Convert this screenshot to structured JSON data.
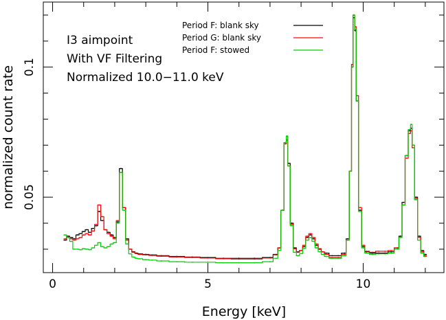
{
  "chart_data": {
    "type": "line",
    "xlabel": "Energy [keV]",
    "ylabel": "normalized count rate",
    "xlim": [
      -0.3,
      12.6
    ],
    "ylim": [
      0.021,
      0.125
    ],
    "x_ticks": [
      0,
      5,
      10
    ],
    "x_tick_labels": [
      "0",
      "5",
      "10"
    ],
    "y_ticks": [
      0.05,
      0.1
    ],
    "y_tick_labels": [
      "0.05",
      "0.1"
    ],
    "annotations": [
      "I3 aimpoint",
      "With VF Filtering",
      "Normalized 10.0−11.0 keV"
    ],
    "legend_position": "top-right",
    "grid": false,
    "series": [
      {
        "name": "Period F: blank sky",
        "color": "#000000",
        "points": [
          [
            0.4,
            0.0335
          ],
          [
            0.5,
            0.035
          ],
          [
            0.6,
            0.0345
          ],
          [
            0.7,
            0.034
          ],
          [
            0.8,
            0.0355
          ],
          [
            0.9,
            0.036
          ],
          [
            1.0,
            0.0368
          ],
          [
            1.1,
            0.0375
          ],
          [
            1.2,
            0.0365
          ],
          [
            1.3,
            0.038
          ],
          [
            1.4,
            0.039
          ],
          [
            1.5,
            0.0445
          ],
          [
            1.6,
            0.041
          ],
          [
            1.7,
            0.0375
          ],
          [
            1.8,
            0.0365
          ],
          [
            1.9,
            0.0355
          ],
          [
            2.0,
            0.0345
          ],
          [
            2.1,
            0.0405
          ],
          [
            2.2,
            0.061
          ],
          [
            2.3,
            0.046
          ],
          [
            2.4,
            0.034
          ],
          [
            2.5,
            0.03
          ],
          [
            2.6,
            0.029
          ],
          [
            2.7,
            0.0285
          ],
          [
            2.8,
            0.0282
          ],
          [
            3.0,
            0.028
          ],
          [
            3.2,
            0.0278
          ],
          [
            3.5,
            0.0275
          ],
          [
            4.0,
            0.0272
          ],
          [
            4.5,
            0.027
          ],
          [
            5.0,
            0.0268
          ],
          [
            5.5,
            0.0265
          ],
          [
            6.0,
            0.0265
          ],
          [
            6.5,
            0.0265
          ],
          [
            7.0,
            0.0268
          ],
          [
            7.2,
            0.028
          ],
          [
            7.3,
            0.0305
          ],
          [
            7.4,
            0.045
          ],
          [
            7.5,
            0.071
          ],
          [
            7.55,
            0.0735
          ],
          [
            7.6,
            0.063
          ],
          [
            7.7,
            0.04
          ],
          [
            7.8,
            0.0305
          ],
          [
            7.9,
            0.029
          ],
          [
            8.0,
            0.0295
          ],
          [
            8.1,
            0.031
          ],
          [
            8.2,
            0.0345
          ],
          [
            8.3,
            0.0355
          ],
          [
            8.4,
            0.034
          ],
          [
            8.5,
            0.0315
          ],
          [
            8.6,
            0.03
          ],
          [
            8.7,
            0.029
          ],
          [
            8.8,
            0.0285
          ],
          [
            9.0,
            0.0275
          ],
          [
            9.2,
            0.0275
          ],
          [
            9.4,
            0.0285
          ],
          [
            9.5,
            0.034
          ],
          [
            9.6,
            0.06
          ],
          [
            9.65,
            0.1
          ],
          [
            9.7,
            0.119
          ],
          [
            9.75,
            0.114
          ],
          [
            9.8,
            0.087
          ],
          [
            9.9,
            0.045
          ],
          [
            10.0,
            0.031
          ],
          [
            10.1,
            0.029
          ],
          [
            10.3,
            0.0285
          ],
          [
            10.5,
            0.0285
          ],
          [
            10.7,
            0.0285
          ],
          [
            10.9,
            0.029
          ],
          [
            11.1,
            0.0305
          ],
          [
            11.2,
            0.035
          ],
          [
            11.3,
            0.048
          ],
          [
            11.4,
            0.066
          ],
          [
            11.5,
            0.0755
          ],
          [
            11.55,
            0.0765
          ],
          [
            11.6,
            0.07
          ],
          [
            11.7,
            0.05
          ],
          [
            11.8,
            0.035
          ],
          [
            11.9,
            0.0295
          ],
          [
            12.0,
            0.028
          ]
        ]
      },
      {
        "name": "Period G: blank sky",
        "color": "#ff0000",
        "points": [
          [
            0.4,
            0.034
          ],
          [
            0.5,
            0.0345
          ],
          [
            0.6,
            0.034
          ],
          [
            0.7,
            0.0335
          ],
          [
            0.8,
            0.034
          ],
          [
            0.9,
            0.0345
          ],
          [
            1.0,
            0.0355
          ],
          [
            1.1,
            0.036
          ],
          [
            1.2,
            0.0355
          ],
          [
            1.3,
            0.037
          ],
          [
            1.4,
            0.0395
          ],
          [
            1.5,
            0.047
          ],
          [
            1.6,
            0.0425
          ],
          [
            1.7,
            0.0375
          ],
          [
            1.8,
            0.036
          ],
          [
            1.9,
            0.035
          ],
          [
            2.0,
            0.034
          ],
          [
            2.1,
            0.041
          ],
          [
            2.2,
            0.0595
          ],
          [
            2.3,
            0.046
          ],
          [
            2.4,
            0.0335
          ],
          [
            2.5,
            0.03
          ],
          [
            2.6,
            0.0288
          ],
          [
            2.7,
            0.0283
          ],
          [
            2.8,
            0.028
          ],
          [
            3.0,
            0.0278
          ],
          [
            3.2,
            0.0276
          ],
          [
            3.5,
            0.0273
          ],
          [
            4.0,
            0.027
          ],
          [
            4.5,
            0.0268
          ],
          [
            5.0,
            0.0266
          ],
          [
            5.5,
            0.0263
          ],
          [
            6.0,
            0.0262
          ],
          [
            6.5,
            0.0262
          ],
          [
            7.0,
            0.0266
          ],
          [
            7.2,
            0.0278
          ],
          [
            7.3,
            0.0305
          ],
          [
            7.4,
            0.045
          ],
          [
            7.5,
            0.0705
          ],
          [
            7.55,
            0.072
          ],
          [
            7.6,
            0.062
          ],
          [
            7.7,
            0.0395
          ],
          [
            7.8,
            0.0302
          ],
          [
            7.9,
            0.0288
          ],
          [
            8.0,
            0.0295
          ],
          [
            8.1,
            0.0315
          ],
          [
            8.2,
            0.035
          ],
          [
            8.3,
            0.036
          ],
          [
            8.4,
            0.0345
          ],
          [
            8.5,
            0.032
          ],
          [
            8.6,
            0.0302
          ],
          [
            8.7,
            0.029
          ],
          [
            8.8,
            0.028
          ],
          [
            9.0,
            0.0268
          ],
          [
            9.2,
            0.0268
          ],
          [
            9.4,
            0.028
          ],
          [
            9.5,
            0.0335
          ],
          [
            9.6,
            0.06
          ],
          [
            9.65,
            0.101
          ],
          [
            9.7,
            0.12
          ],
          [
            9.75,
            0.1155
          ],
          [
            9.8,
            0.089
          ],
          [
            9.9,
            0.046
          ],
          [
            10.0,
            0.0315
          ],
          [
            10.1,
            0.0292
          ],
          [
            10.3,
            0.0288
          ],
          [
            10.5,
            0.0292
          ],
          [
            10.7,
            0.0292
          ],
          [
            10.9,
            0.0295
          ],
          [
            11.1,
            0.0305
          ],
          [
            11.2,
            0.0345
          ],
          [
            11.3,
            0.047
          ],
          [
            11.4,
            0.065
          ],
          [
            11.5,
            0.0745
          ],
          [
            11.55,
            0.0755
          ],
          [
            11.6,
            0.069
          ],
          [
            11.7,
            0.0495
          ],
          [
            11.8,
            0.0345
          ],
          [
            11.9,
            0.029
          ],
          [
            12.0,
            0.0275
          ]
        ]
      },
      {
        "name": "Period F: stowed",
        "color": "#00cc00",
        "points": [
          [
            0.4,
            0.0355
          ],
          [
            0.5,
            0.0345
          ],
          [
            0.6,
            0.033
          ],
          [
            0.7,
            0.03
          ],
          [
            0.8,
            0.03
          ],
          [
            0.9,
            0.0298
          ],
          [
            1.0,
            0.0302
          ],
          [
            1.1,
            0.03
          ],
          [
            1.2,
            0.0298
          ],
          [
            1.3,
            0.0305
          ],
          [
            1.4,
            0.0315
          ],
          [
            1.5,
            0.0325
          ],
          [
            1.6,
            0.031
          ],
          [
            1.7,
            0.0305
          ],
          [
            1.8,
            0.031
          ],
          [
            1.9,
            0.032
          ],
          [
            2.0,
            0.0325
          ],
          [
            2.1,
            0.04
          ],
          [
            2.2,
            0.0595
          ],
          [
            2.3,
            0.045
          ],
          [
            2.4,
            0.032
          ],
          [
            2.5,
            0.0282
          ],
          [
            2.6,
            0.027
          ],
          [
            2.7,
            0.0265
          ],
          [
            2.8,
            0.0263
          ],
          [
            3.0,
            0.026
          ],
          [
            3.2,
            0.0258
          ],
          [
            3.5,
            0.0255
          ],
          [
            4.0,
            0.0252
          ],
          [
            4.5,
            0.025
          ],
          [
            5.0,
            0.025
          ],
          [
            5.5,
            0.0248
          ],
          [
            6.0,
            0.0248
          ],
          [
            6.5,
            0.0248
          ],
          [
            7.0,
            0.0252
          ],
          [
            7.2,
            0.0265
          ],
          [
            7.3,
            0.0295
          ],
          [
            7.4,
            0.045
          ],
          [
            7.5,
            0.071
          ],
          [
            7.55,
            0.0735
          ],
          [
            7.6,
            0.062
          ],
          [
            7.7,
            0.039
          ],
          [
            7.8,
            0.0288
          ],
          [
            7.9,
            0.0275
          ],
          [
            8.0,
            0.0283
          ],
          [
            8.1,
            0.0303
          ],
          [
            8.2,
            0.0335
          ],
          [
            8.3,
            0.0345
          ],
          [
            8.4,
            0.033
          ],
          [
            8.5,
            0.0305
          ],
          [
            8.6,
            0.029
          ],
          [
            8.7,
            0.028
          ],
          [
            8.8,
            0.0272
          ],
          [
            9.0,
            0.0265
          ],
          [
            9.2,
            0.0265
          ],
          [
            9.4,
            0.0275
          ],
          [
            9.5,
            0.0335
          ],
          [
            9.6,
            0.06
          ],
          [
            9.65,
            0.1
          ],
          [
            9.7,
            0.12
          ],
          [
            9.75,
            0.1145
          ],
          [
            9.8,
            0.087
          ],
          [
            9.9,
            0.0445
          ],
          [
            10.0,
            0.0305
          ],
          [
            10.1,
            0.0285
          ],
          [
            10.3,
            0.028
          ],
          [
            10.5,
            0.0282
          ],
          [
            10.7,
            0.0282
          ],
          [
            10.9,
            0.0285
          ],
          [
            11.1,
            0.03
          ],
          [
            11.2,
            0.0345
          ],
          [
            11.3,
            0.047
          ],
          [
            11.4,
            0.066
          ],
          [
            11.5,
            0.076
          ],
          [
            11.55,
            0.078
          ],
          [
            11.6,
            0.07
          ],
          [
            11.7,
            0.049
          ],
          [
            11.8,
            0.0335
          ],
          [
            11.9,
            0.0285
          ],
          [
            12.0,
            0.0272
          ]
        ]
      }
    ]
  }
}
